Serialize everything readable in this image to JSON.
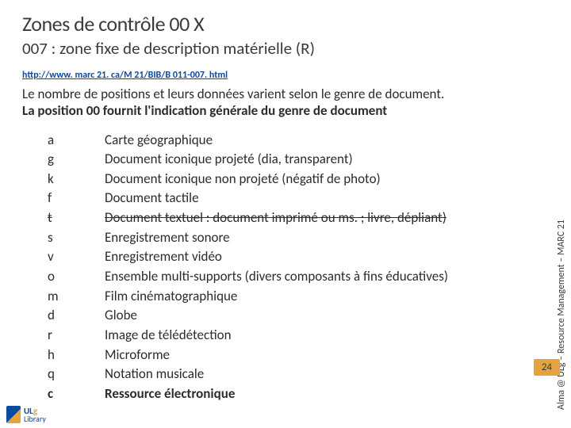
{
  "title": "Zones de contrôle 00 X",
  "subtitle": "007 : zone fixe de description matérielle (R)",
  "link": "http://www. marc 21. ca/M 21/BIB/B 011-007. html",
  "intro_line1": "Le nombre de positions et leurs données varient selon le genre de document.",
  "intro_line2": "La position 00 fournit l'indication générale du genre de document",
  "table": [
    {
      "code": "a",
      "desc": "Carte géographique",
      "strike": false,
      "bold": false
    },
    {
      "code": "g",
      "desc": "Document iconique projeté (dia, transparent)",
      "strike": false,
      "bold": false
    },
    {
      "code": "k",
      "desc": "Document iconique non projeté (négatif de photo)",
      "strike": false,
      "bold": false
    },
    {
      "code": "f",
      "desc": "Document tactile",
      "strike": false,
      "bold": false
    },
    {
      "code": "t",
      "desc": "Document textuel : document imprimé ou ms. ; livre, dépliant)",
      "strike": true,
      "bold": false
    },
    {
      "code": "s",
      "desc": "Enregistrement sonore",
      "strike": false,
      "bold": false
    },
    {
      "code": "v",
      "desc": "Enregistrement vidéo",
      "strike": false,
      "bold": false
    },
    {
      "code": "o",
      "desc": "Ensemble multi-supports (divers composants à fins éducatives)",
      "strike": false,
      "bold": false
    },
    {
      "code": "m",
      "desc": "Film cinématographique",
      "strike": false,
      "bold": false
    },
    {
      "code": "d",
      "desc": "Globe",
      "strike": false,
      "bold": false
    },
    {
      "code": "r",
      "desc": "Image de télédétection",
      "strike": false,
      "bold": false
    },
    {
      "code": "h",
      "desc": "Microforme",
      "strike": false,
      "bold": false
    },
    {
      "code": "q",
      "desc": "Notation musicale",
      "strike": false,
      "bold": false
    },
    {
      "code": "c",
      "desc": "Ressource électronique",
      "strike": false,
      "bold": true
    }
  ],
  "side_label": "Alma @ ULg – Resource Management – MARC 21",
  "page_number": "24",
  "logo": {
    "line1a": "UL",
    "line1b": "g",
    "line2": "Library"
  },
  "colors": {
    "text": "#2c2c2c",
    "link": "#0b4aa2",
    "badge_bg": "#e6a23c",
    "bg": "#ffffff"
  }
}
